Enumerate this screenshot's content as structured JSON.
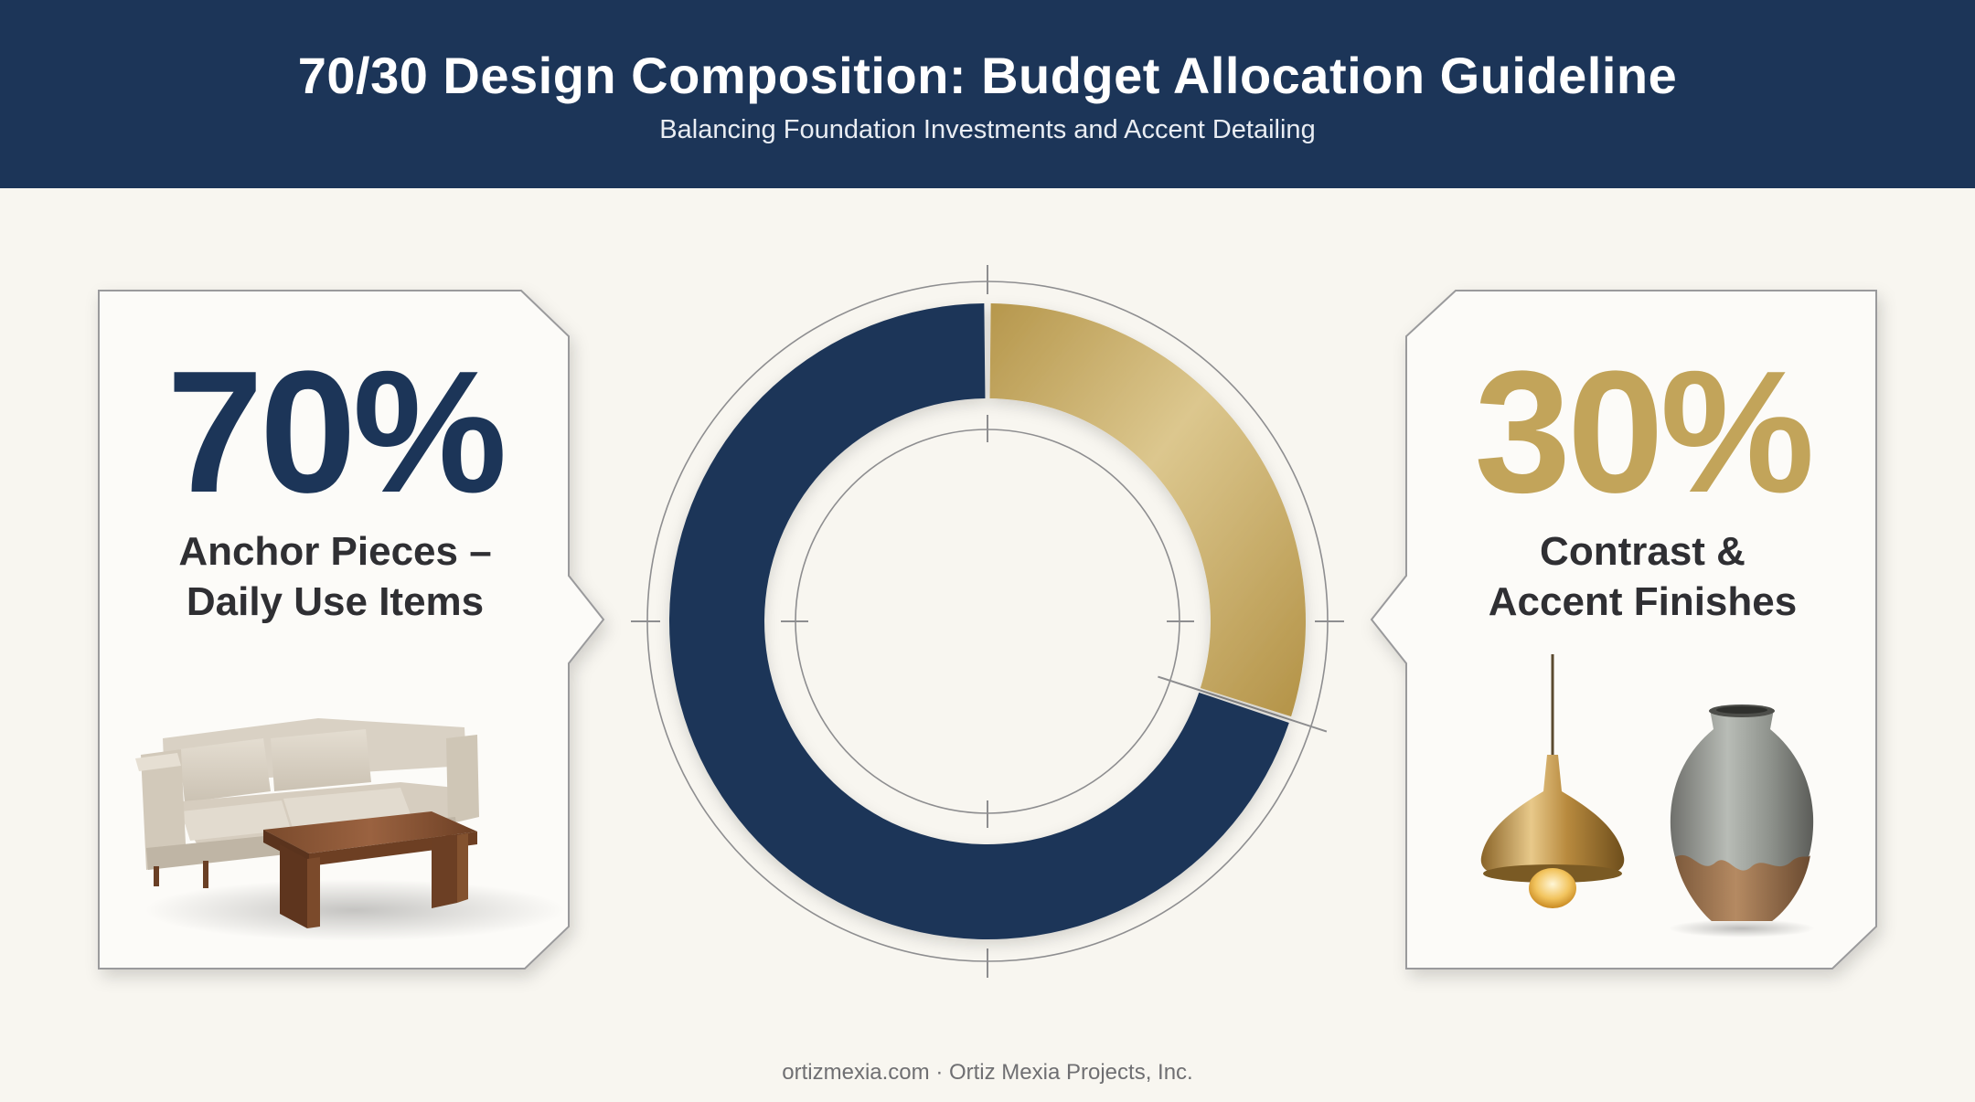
{
  "header": {
    "title": "70/30 Design Composition: Budget Allocation Guideline",
    "subtitle": "Balancing Foundation Investments and Accent Detailing"
  },
  "left_panel": {
    "percent": "70%",
    "label_line1": "Anchor Pieces –",
    "label_line2": "Daily Use Items",
    "illustration_icon": "sofa-and-coffee-table-icon"
  },
  "right_panel": {
    "percent": "30%",
    "label_line1": "Contrast &",
    "label_line2": "Accent Finishes",
    "illustration_icons": [
      "pendant-lamp-icon",
      "ceramic-vase-icon"
    ]
  },
  "footer": {
    "text": "ortizmexia.com · Ortiz Mexia Projects, Inc."
  },
  "colors": {
    "navy": "#1c3558",
    "gold": "#c2a45a",
    "background": "#f8f6f0"
  },
  "chart_data": {
    "type": "pie",
    "variant": "donut",
    "categories": [
      "Anchor Pieces – Daily Use Items",
      "Contrast & Accent Finishes"
    ],
    "values": [
      70,
      30
    ],
    "colors": [
      "#1c3558",
      "#c2a45a"
    ],
    "title": "",
    "legend": "none"
  }
}
